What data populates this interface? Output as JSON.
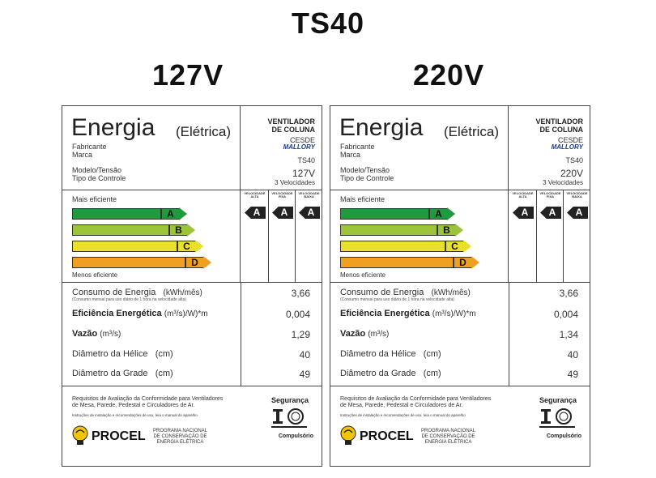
{
  "title": "TS40",
  "labels": [
    {
      "voltage_heading": "127V",
      "energia": "Energia",
      "eletrica": "(Elétrica)",
      "fabricante": "Fabricante",
      "marca": "Marca",
      "modelo": "Modelo/Tensão",
      "tipo": "Tipo de Controle",
      "product_line1": "VENTILADOR",
      "product_line2": "DE COLUNA",
      "maker": "CESDE",
      "brand": "MALLORY",
      "model": "TS40",
      "volt": "127V",
      "speeds": "3 Velocidades",
      "mais": "Mais eficiente",
      "menos": "Menos eficiente",
      "bars": [
        "A",
        "B",
        "C",
        "D"
      ],
      "col_heads": [
        "VELOCIDADE ALTA",
        "VELOCIDADE FIXA",
        "VELOCIDADE BAIXA"
      ],
      "col_tags": [
        "A",
        "A",
        "A"
      ],
      "consumo_label": "Consumo de Energia",
      "consumo_unit": "(kWh/mês)",
      "consumo_sub": "(Consumo mensal para uso diário de 1 hora na velocidade alta)",
      "consumo_val": "3,66",
      "efic_label": "Eficiência Energética",
      "efic_unit": "(m³/s)/W)*m",
      "efic_val": "0,004",
      "vazao_label": "Vazão",
      "vazao_unit": "(m³/s)",
      "vazao_val": "1,29",
      "helice_label": "Diâmetro da Hélice   (cm)",
      "helice_val": "40",
      "grade_label": "Diâmetro da Grade   (cm)",
      "grade_val": "49",
      "req1": "Requisitos de Avaliação da Conformidade para Ventiladores",
      "req2": "de Mesa, Parede, Pedestal e Circuladores de Ar.",
      "instr": "Instruções de instalação e recomendações de uso, leia o manual do aparelho",
      "procel": "PROCEL",
      "procel_d1": "PROGRAMA NACIONAL",
      "procel_d2": "DE CONSERVAÇÃO DE",
      "procel_d3": "ENERGIA ELÉTRICA",
      "seguranca": "Segurança",
      "compulsorio": "Compulsório"
    },
    {
      "voltage_heading": "220V",
      "energia": "Energia",
      "eletrica": "(Elétrica)",
      "fabricante": "Fabricante",
      "marca": "Marca",
      "modelo": "Modelo/Tensão",
      "tipo": "Tipo de Controle",
      "product_line1": "VENTILADOR",
      "product_line2": "DE COLUNA",
      "maker": "CESDE",
      "brand": "MALLORY",
      "model": "TS40",
      "volt": "220V",
      "speeds": "3 Velocidades",
      "mais": "Mais eficiente",
      "menos": "Menos eficiente",
      "bars": [
        "A",
        "B",
        "C",
        "D"
      ],
      "col_heads": [
        "VELOCIDADE ALTA",
        "VELOCIDADE FIXA",
        "VELOCIDADE BAIXA"
      ],
      "col_tags": [
        "A",
        "A",
        "A"
      ],
      "consumo_label": "Consumo de Energia",
      "consumo_unit": "(kWh/mês)",
      "consumo_sub": "(Consumo mensal para uso diário de 1 hora na velocidade alta)",
      "consumo_val": "3,66",
      "efic_label": "Eficiência Energética",
      "efic_unit": "(m³/s)/W)*m",
      "efic_val": "0,004",
      "vazao_label": "Vazão",
      "vazao_unit": "(m³/s)",
      "vazao_val": "1,34",
      "helice_label": "Diâmetro da Hélice   (cm)",
      "helice_val": "40",
      "grade_label": "Diâmetro da Grade   (cm)",
      "grade_val": "49",
      "req1": "Requisitos de Avaliação da Conformidade para Ventiladores",
      "req2": "de Mesa, Parede, Pedestal e Circuladores de Ar.",
      "instr": "Instruções de instalação e recomendações de uso, leia o manual do aparelho",
      "procel": "PROCEL",
      "procel_d1": "PROGRAMA NACIONAL",
      "procel_d2": "DE CONSERVAÇÃO DE",
      "procel_d3": "ENERGIA ELÉTRICA",
      "seguranca": "Segurança",
      "compulsorio": "Compulsório"
    }
  ],
  "colors": {
    "bar_a": "#1f9a3c",
    "bar_b": "#9cc43a",
    "bar_c": "#e8e02a",
    "bar_d": "#f0a020",
    "procel_yellow": "#f2c500"
  }
}
